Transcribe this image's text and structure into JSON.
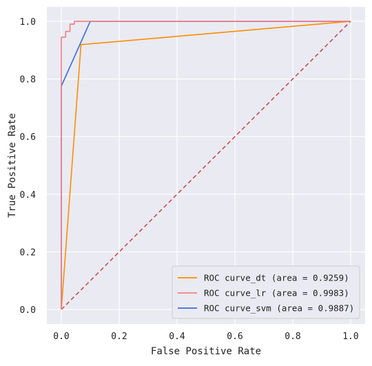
{
  "chart_data": {
    "type": "line",
    "xlabel": "False Positive Rate",
    "ylabel": "True Positive Rate",
    "xlim": [
      -0.05,
      1.05
    ],
    "ylim": [
      -0.05,
      1.05
    ],
    "x_ticks": [
      "0.0",
      "0.2",
      "0.4",
      "0.6",
      "0.8",
      "1.0"
    ],
    "y_ticks": [
      "0.0",
      "0.2",
      "0.4",
      "0.6",
      "0.8",
      "1.0"
    ],
    "grid": true,
    "background": "#eaeaf2",
    "legend_position": "lower-right",
    "series": [
      {
        "name": "ROC curve_dt (area = 0.9259)",
        "color": "#ff8c00",
        "style": "solid",
        "x": [
          0.0,
          0.068,
          1.0
        ],
        "y": [
          0.0,
          0.919,
          1.0
        ]
      },
      {
        "name": "ROC curve_lr (area = 0.9983)",
        "color": "#f08080",
        "style": "solid",
        "x": [
          0.0,
          0.0,
          0.0,
          0.0,
          0.0,
          0.015,
          0.015,
          0.03,
          0.03,
          0.045,
          0.045,
          0.06,
          1.0
        ],
        "y": [
          0.0,
          0.78,
          0.86,
          0.91,
          0.945,
          0.945,
          0.965,
          0.965,
          0.99,
          0.99,
          1.0,
          1.0,
          1.0
        ]
      },
      {
        "name": "ROC curve_svm (area = 0.9887)",
        "color": "#4169e1",
        "style": "solid",
        "x": [
          0.0,
          0.0,
          0.1,
          1.0
        ],
        "y": [
          0.0,
          0.775,
          1.0,
          1.0
        ]
      },
      {
        "color": "#c44e52",
        "style": "dashed",
        "x": [
          0.0,
          1.0
        ],
        "y": [
          0.0,
          1.0
        ]
      }
    ]
  }
}
